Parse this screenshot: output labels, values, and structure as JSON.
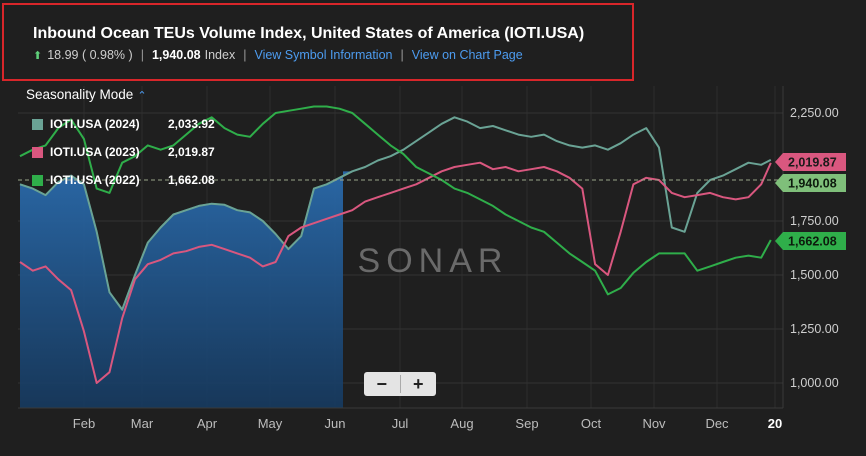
{
  "header": {
    "title": "Inbound Ocean TEUs Volume Index, United States of America (IOTI.USA)",
    "change": "18.99 ( 0.98% )",
    "value": "1,940.08",
    "value_unit": "Index",
    "link_symbol": "View Symbol Information",
    "link_chart": "View on Chart Page"
  },
  "seasonality_label": "Seasonality Mode",
  "legend": [
    {
      "name": "IOTI.USA (2024)",
      "value": "2,033.92",
      "color": "#6aa395"
    },
    {
      "name": "IOTI.USA (2023)",
      "value": "2,019.87",
      "color": "#d9577f"
    },
    {
      "name": "IOTI.USA (2022)",
      "value": "1,662.08",
      "color": "#2fae4a"
    }
  ],
  "watermark": "SONAR",
  "colors": {
    "background": "#1f1f1f",
    "grid": "#3a3a3a",
    "fill_2024": "#1c4a78",
    "accent_2024": "#3f8fdb"
  },
  "chart_data": {
    "type": "line",
    "x_ticks": [
      "Feb",
      "Mar",
      "Apr",
      "May",
      "Jun",
      "Jul",
      "Aug",
      "Sep",
      "Oct",
      "Nov",
      "Dec",
      "20"
    ],
    "y_ticks": [
      "1,000.00",
      "1,250.00",
      "1,500.00",
      "1,750.00",
      "2,250.00"
    ],
    "ylim": [
      930,
      2380
    ],
    "grid": true,
    "reference_line": 1940.08,
    "end_labels": [
      "2,019.87",
      "1,940.08",
      "1,662.08"
    ],
    "series": [
      {
        "name": "IOTI.USA (2024)",
        "color": "#6aa395",
        "fill": true,
        "x": [
          0,
          0.2,
          0.4,
          0.6,
          0.8,
          1.0,
          1.2,
          1.4,
          1.6,
          1.8,
          2.0,
          2.2,
          2.4,
          2.6,
          2.8,
          3.0,
          3.2,
          3.4,
          3.6,
          3.8,
          4.0,
          4.2,
          4.4,
          4.6,
          4.8,
          5.0,
          5.2,
          5.4,
          5.6,
          5.8,
          6.0,
          6.2,
          6.4,
          6.6,
          6.8,
          7.0,
          7.2,
          7.4,
          7.6,
          7.8,
          8.0,
          8.2,
          8.4,
          8.6,
          8.8,
          9.0,
          9.2,
          9.4,
          9.6,
          9.8,
          10.0,
          10.2,
          10.4,
          10.6,
          10.8,
          11.0,
          11.2,
          11.4,
          11.6,
          11.75
        ],
        "y": [
          1920,
          1900,
          1870,
          1930,
          1960,
          1920,
          1700,
          1420,
          1340,
          1500,
          1650,
          1720,
          1780,
          1800,
          1820,
          1830,
          1825,
          1800,
          1790,
          1750,
          1690,
          1620,
          1680,
          1900,
          1920,
          1950,
          1980,
          2000,
          2030,
          2050,
          2080,
          2120,
          2160,
          2200,
          2230,
          2210,
          2180,
          2190,
          2170,
          2150,
          2140,
          2150,
          2120,
          2100,
          2090,
          2100,
          2080,
          2110,
          2150,
          2180,
          2090,
          1720,
          1700,
          1880,
          1940,
          1960,
          1990,
          2020,
          2010,
          2033
        ]
      },
      {
        "name": "IOTI.USA (2023)",
        "color": "#d9577f",
        "fill": false,
        "x": [
          0,
          0.2,
          0.4,
          0.6,
          0.8,
          1.0,
          1.2,
          1.4,
          1.6,
          1.8,
          2.0,
          2.2,
          2.4,
          2.6,
          2.8,
          3.0,
          3.2,
          3.4,
          3.6,
          3.8,
          4.0,
          4.2,
          4.4,
          4.6,
          4.8,
          5.0,
          5.2,
          5.4,
          5.6,
          5.8,
          6.0,
          6.2,
          6.4,
          6.6,
          6.8,
          7.0,
          7.2,
          7.4,
          7.6,
          7.8,
          8.0,
          8.2,
          8.4,
          8.6,
          8.8,
          9.0,
          9.2,
          9.4,
          9.6,
          9.8,
          10.0,
          10.2,
          10.4,
          10.6,
          10.8,
          11.0,
          11.2,
          11.4,
          11.6,
          11.75
        ],
        "y": [
          1560,
          1520,
          1540,
          1480,
          1430,
          1240,
          1000,
          1050,
          1300,
          1480,
          1550,
          1570,
          1600,
          1610,
          1630,
          1640,
          1620,
          1600,
          1580,
          1540,
          1560,
          1680,
          1720,
          1740,
          1760,
          1780,
          1800,
          1840,
          1860,
          1880,
          1900,
          1920,
          1950,
          1980,
          2000,
          2010,
          2020,
          1990,
          2000,
          1980,
          1990,
          2000,
          1980,
          1950,
          1900,
          1550,
          1500,
          1700,
          1920,
          1950,
          1940,
          1880,
          1860,
          1870,
          1880,
          1860,
          1850,
          1860,
          1920,
          2019
        ]
      },
      {
        "name": "IOTI.USA (2022)",
        "color": "#2fae4a",
        "fill": false,
        "x": [
          0,
          0.2,
          0.4,
          0.6,
          0.8,
          1.0,
          1.2,
          1.4,
          1.6,
          1.8,
          2.0,
          2.2,
          2.4,
          2.6,
          2.8,
          3.0,
          3.2,
          3.4,
          3.6,
          3.8,
          4.0,
          4.2,
          4.4,
          4.6,
          4.8,
          5.0,
          5.2,
          5.4,
          5.6,
          5.8,
          6.0,
          6.2,
          6.4,
          6.6,
          6.8,
          7.0,
          7.2,
          7.4,
          7.6,
          7.8,
          8.0,
          8.2,
          8.4,
          8.6,
          8.8,
          9.0,
          9.2,
          9.4,
          9.6,
          9.8,
          10.0,
          10.2,
          10.4,
          10.6,
          10.8,
          11.0,
          11.2,
          11.4,
          11.6,
          11.75
        ],
        "y": [
          2050,
          2080,
          2100,
          2180,
          2220,
          2130,
          1900,
          1880,
          2020,
          2050,
          2100,
          2080,
          2100,
          2150,
          2200,
          2230,
          2180,
          2150,
          2140,
          2200,
          2250,
          2260,
          2270,
          2280,
          2280,
          2270,
          2250,
          2200,
          2150,
          2100,
          2060,
          2000,
          1970,
          1940,
          1900,
          1880,
          1850,
          1820,
          1780,
          1750,
          1720,
          1700,
          1650,
          1600,
          1560,
          1520,
          1410,
          1440,
          1510,
          1560,
          1600,
          1600,
          1600,
          1520,
          1540,
          1560,
          1580,
          1590,
          1580,
          1662
        ]
      }
    ]
  }
}
